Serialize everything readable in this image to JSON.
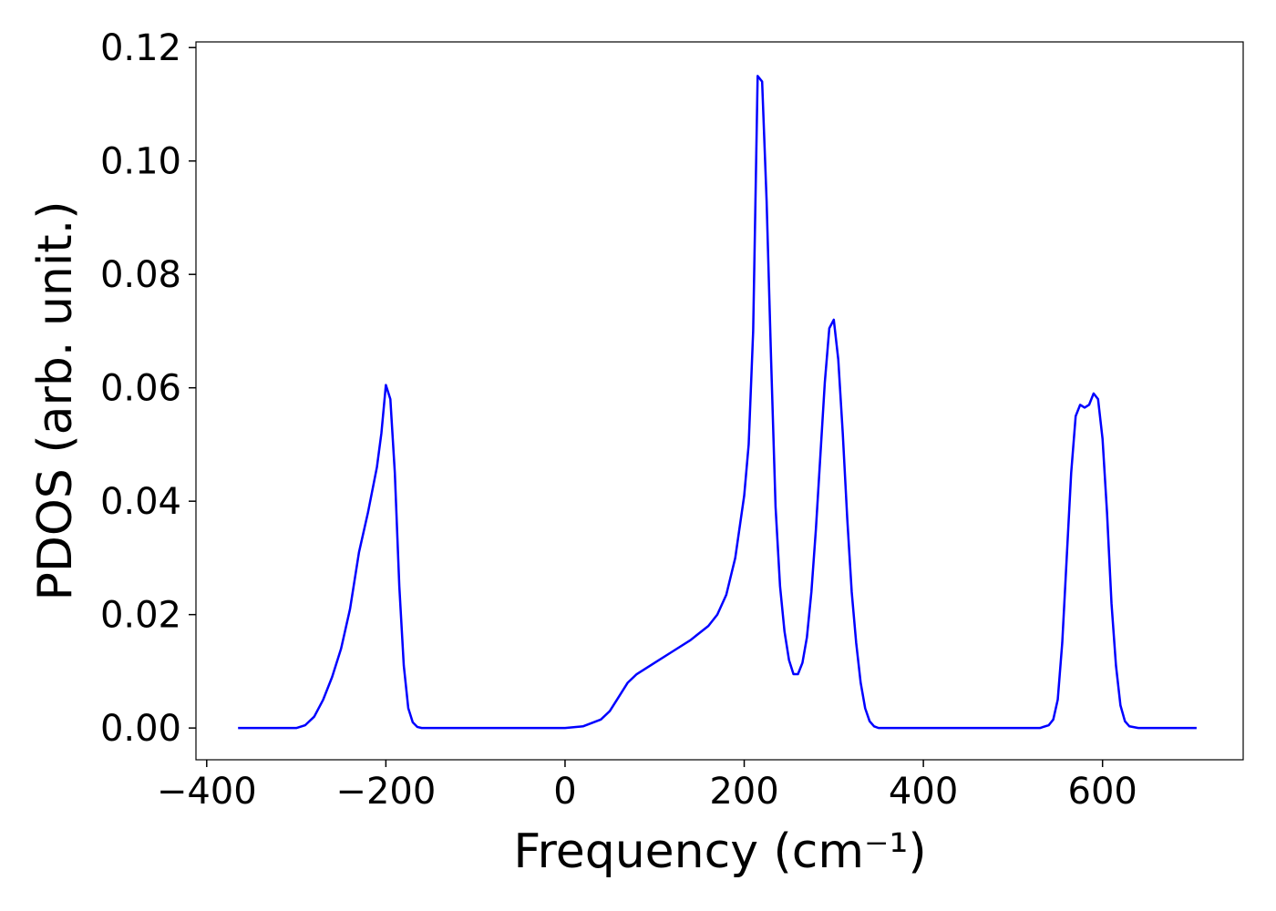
{
  "chart_data": {
    "type": "line",
    "xlabel": "Frequency (cm⁻¹)",
    "ylabel": "PDOS (arb. unit.)",
    "xlim": [
      -412,
      757
    ],
    "ylim": [
      -0.0056,
      0.121
    ],
    "xticks": [
      {
        "value": -400,
        "label": "−400"
      },
      {
        "value": -200,
        "label": "−200"
      },
      0,
      200,
      400,
      600
    ],
    "yticks": [
      {
        "value": 0,
        "label": "0.00"
      },
      {
        "value": 0.02,
        "label": "0.02"
      },
      {
        "value": 0.04,
        "label": "0.04"
      },
      {
        "value": 0.06,
        "label": "0.06"
      },
      {
        "value": 0.08,
        "label": "0.08"
      },
      {
        "value": 0.1,
        "label": "0.10"
      },
      {
        "value": 0.12,
        "label": "0.12"
      }
    ],
    "grid": false,
    "x": [
      -365,
      -300,
      -290,
      -280,
      -270,
      -260,
      -250,
      -240,
      -230,
      -220,
      -210,
      -205,
      -200,
      -195,
      -190,
      -185,
      -180,
      -175,
      -170,
      -165,
      -160,
      0,
      20,
      40,
      50,
      60,
      70,
      80,
      100,
      120,
      140,
      160,
      170,
      180,
      190,
      200,
      205,
      210,
      215,
      220,
      225,
      230,
      235,
      240,
      245,
      250,
      255,
      260,
      265,
      270,
      275,
      280,
      285,
      290,
      295,
      300,
      305,
      310,
      315,
      320,
      325,
      330,
      335,
      340,
      345,
      350,
      530,
      540,
      545,
      550,
      555,
      560,
      565,
      570,
      575,
      580,
      585,
      590,
      595,
      600,
      605,
      610,
      615,
      620,
      625,
      630,
      640,
      705
    ],
    "series": [
      {
        "color": "#0000ff",
        "values": [
          0,
          0,
          0.0005,
          0.002,
          0.005,
          0.009,
          0.014,
          0.021,
          0.031,
          0.038,
          0.046,
          0.052,
          0.0605,
          0.058,
          0.045,
          0.025,
          0.011,
          0.0035,
          0.001,
          0.0002,
          0,
          0,
          0.0003,
          0.0015,
          0.003,
          0.0055,
          0.008,
          0.0095,
          0.0115,
          0.0135,
          0.0155,
          0.018,
          0.02,
          0.0235,
          0.03,
          0.041,
          0.05,
          0.07,
          0.115,
          0.114,
          0.093,
          0.065,
          0.039,
          0.025,
          0.017,
          0.012,
          0.0095,
          0.0095,
          0.0115,
          0.016,
          0.024,
          0.035,
          0.048,
          0.061,
          0.0705,
          0.072,
          0.065,
          0.052,
          0.037,
          0.024,
          0.015,
          0.008,
          0.0035,
          0.0012,
          0.0003,
          0,
          0,
          0.0005,
          0.0015,
          0.005,
          0.015,
          0.03,
          0.045,
          0.055,
          0.057,
          0.0565,
          0.057,
          0.059,
          0.058,
          0.051,
          0.038,
          0.022,
          0.011,
          0.004,
          0.0012,
          0.0003,
          0,
          0
        ]
      }
    ]
  }
}
